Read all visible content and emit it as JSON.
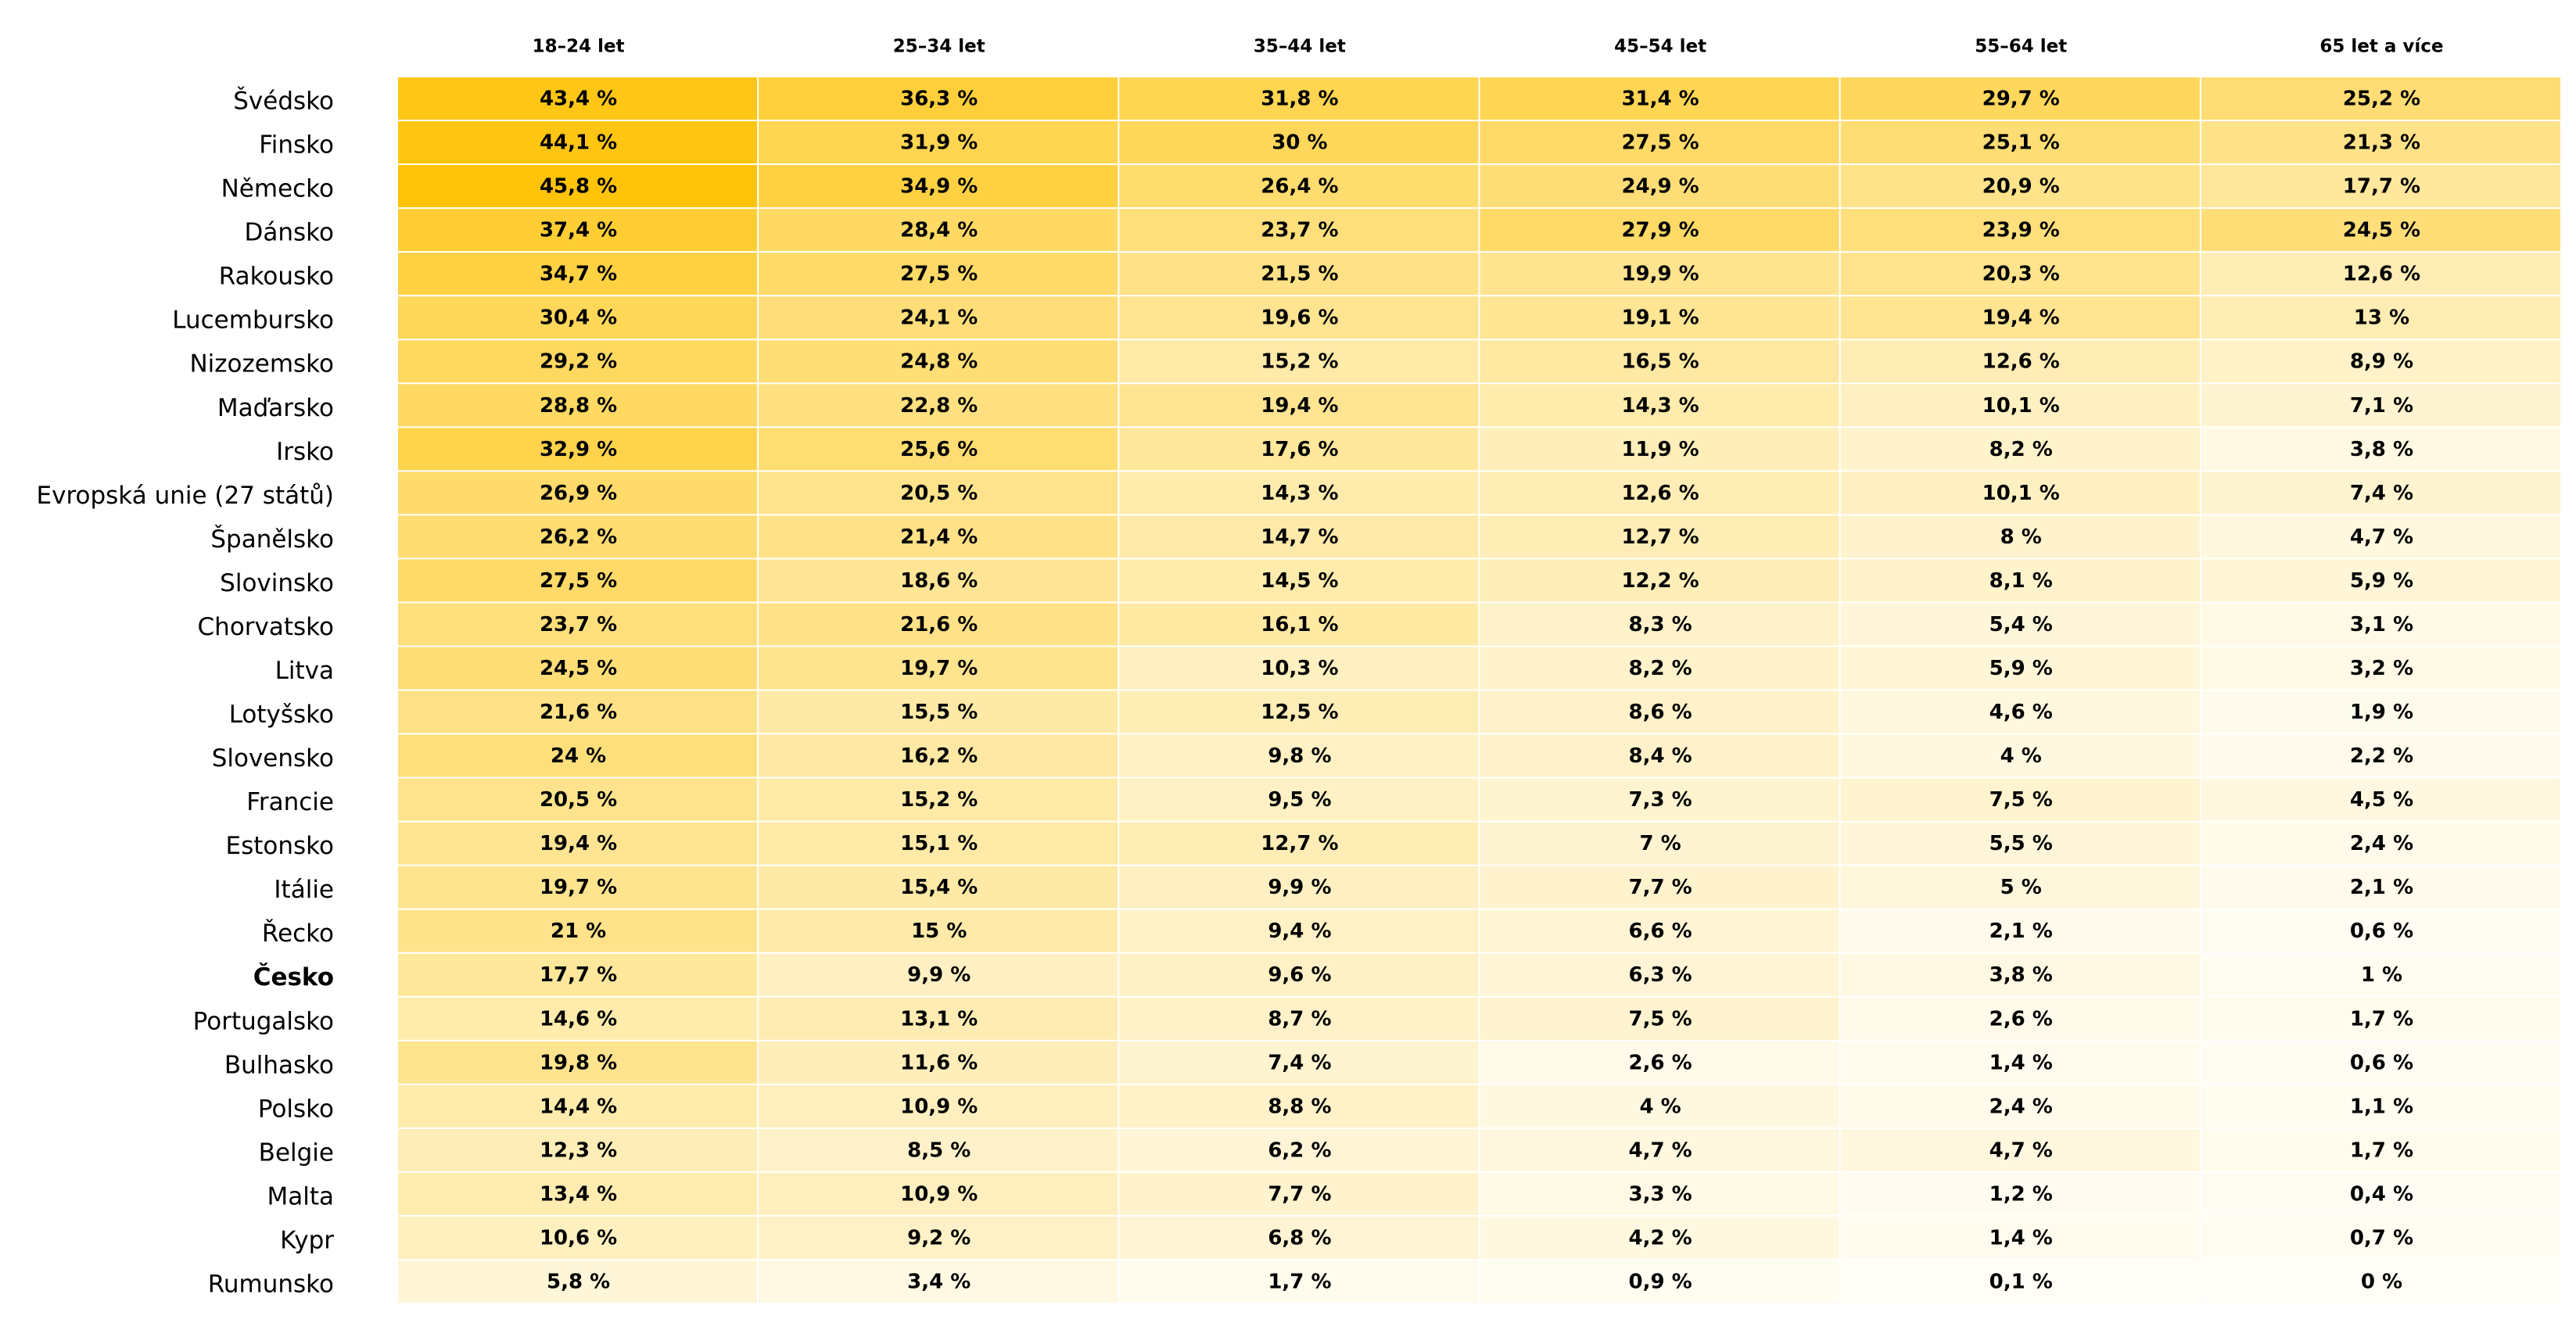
{
  "chart_data": {
    "type": "heatmap",
    "unit_suffix": " %",
    "color_scale": {
      "low": "#fffdf6",
      "high": "#ffc30a",
      "min": 0,
      "max": 45.8
    },
    "columns": [
      "18–24 let",
      "25–34 let",
      "35–44 let",
      "45–54 let",
      "55–64 let",
      "65 let a více"
    ],
    "rows": [
      {
        "label": "Švédsko",
        "values": [
          43.4,
          36.3,
          31.8,
          31.4,
          29.7,
          25.2
        ],
        "display": [
          "43,4 %",
          "36,3 %",
          "31,8 %",
          "31,4 %",
          "29,7 %",
          "25,2 %"
        ]
      },
      {
        "label": "Finsko",
        "values": [
          44.1,
          31.9,
          30,
          27.5,
          25.1,
          21.3
        ],
        "display": [
          "44,1 %",
          "31,9 %",
          "30 %",
          "27,5 %",
          "25,1 %",
          "21,3 %"
        ]
      },
      {
        "label": "Německo",
        "values": [
          45.8,
          34.9,
          26.4,
          24.9,
          20.9,
          17.7
        ],
        "display": [
          "45,8 %",
          "34,9 %",
          "26,4 %",
          "24,9 %",
          "20,9 %",
          "17,7 %"
        ]
      },
      {
        "label": "Dánsko",
        "values": [
          37.4,
          28.4,
          23.7,
          27.9,
          23.9,
          24.5
        ],
        "display": [
          "37,4 %",
          "28,4 %",
          "23,7 %",
          "27,9 %",
          "23,9 %",
          "24,5 %"
        ]
      },
      {
        "label": "Rakousko",
        "values": [
          34.7,
          27.5,
          21.5,
          19.9,
          20.3,
          12.6
        ],
        "display": [
          "34,7 %",
          "27,5 %",
          "21,5 %",
          "19,9 %",
          "20,3 %",
          "12,6 %"
        ]
      },
      {
        "label": "Lucembursko",
        "values": [
          30.4,
          24.1,
          19.6,
          19.1,
          19.4,
          13
        ],
        "display": [
          "30,4 %",
          "24,1 %",
          "19,6 %",
          "19,1 %",
          "19,4 %",
          "13 %"
        ]
      },
      {
        "label": "Nizozemsko",
        "values": [
          29.2,
          24.8,
          15.2,
          16.5,
          12.6,
          8.9
        ],
        "display": [
          "29,2 %",
          "24,8 %",
          "15,2 %",
          "16,5 %",
          "12,6 %",
          "8,9 %"
        ]
      },
      {
        "label": "Maďarsko",
        "values": [
          28.8,
          22.8,
          19.4,
          14.3,
          10.1,
          7.1
        ],
        "display": [
          "28,8 %",
          "22,8 %",
          "19,4 %",
          "14,3 %",
          "10,1 %",
          "7,1 %"
        ]
      },
      {
        "label": "Irsko",
        "values": [
          32.9,
          25.6,
          17.6,
          11.9,
          8.2,
          3.8
        ],
        "display": [
          "32,9 %",
          "25,6 %",
          "17,6 %",
          "11,9 %",
          "8,2 %",
          "3,8 %"
        ]
      },
      {
        "label": "Evropská unie (27 států)",
        "values": [
          26.9,
          20.5,
          14.3,
          12.6,
          10.1,
          7.4
        ],
        "display": [
          "26,9 %",
          "20,5 %",
          "14,3 %",
          "12,6 %",
          "10,1 %",
          "7,4 %"
        ]
      },
      {
        "label": "Španělsko",
        "values": [
          26.2,
          21.4,
          14.7,
          12.7,
          8,
          4.7
        ],
        "display": [
          "26,2 %",
          "21,4 %",
          "14,7 %",
          "12,7 %",
          "8 %",
          "4,7 %"
        ]
      },
      {
        "label": "Slovinsko",
        "values": [
          27.5,
          18.6,
          14.5,
          12.2,
          8.1,
          5.9
        ],
        "display": [
          "27,5 %",
          "18,6 %",
          "14,5 %",
          "12,2 %",
          "8,1 %",
          "5,9 %"
        ]
      },
      {
        "label": "Chorvatsko",
        "values": [
          23.7,
          21.6,
          16.1,
          8.3,
          5.4,
          3.1
        ],
        "display": [
          "23,7 %",
          "21,6 %",
          "16,1 %",
          "8,3 %",
          "5,4 %",
          "3,1 %"
        ]
      },
      {
        "label": "Litva",
        "values": [
          24.5,
          19.7,
          10.3,
          8.2,
          5.9,
          3.2
        ],
        "display": [
          "24,5 %",
          "19,7 %",
          "10,3 %",
          "8,2 %",
          "5,9 %",
          "3,2 %"
        ]
      },
      {
        "label": "Lotyšsko",
        "values": [
          21.6,
          15.5,
          12.5,
          8.6,
          4.6,
          1.9
        ],
        "display": [
          "21,6 %",
          "15,5 %",
          "12,5 %",
          "8,6 %",
          "4,6 %",
          "1,9 %"
        ]
      },
      {
        "label": "Slovensko",
        "values": [
          24,
          16.2,
          9.8,
          8.4,
          4,
          2.2
        ],
        "display": [
          "24 %",
          "16,2 %",
          "9,8 %",
          "8,4 %",
          "4 %",
          "2,2 %"
        ]
      },
      {
        "label": "Francie",
        "values": [
          20.5,
          15.2,
          9.5,
          7.3,
          7.5,
          4.5
        ],
        "display": [
          "20,5 %",
          "15,2 %",
          "9,5 %",
          "7,3 %",
          "7,5 %",
          "4,5 %"
        ]
      },
      {
        "label": "Estonsko",
        "values": [
          19.4,
          15.1,
          12.7,
          7,
          5.5,
          2.4
        ],
        "display": [
          "19,4 %",
          "15,1 %",
          "12,7 %",
          "7 %",
          "5,5 %",
          "2,4 %"
        ]
      },
      {
        "label": "Itálie",
        "values": [
          19.7,
          15.4,
          9.9,
          7.7,
          5,
          2.1
        ],
        "display": [
          "19,7 %",
          "15,4 %",
          "9,9 %",
          "7,7 %",
          "5 %",
          "2,1 %"
        ]
      },
      {
        "label": "Řecko",
        "values": [
          21,
          15,
          9.4,
          6.6,
          2.1,
          0.6
        ],
        "display": [
          "21 %",
          "15 %",
          "9,4 %",
          "6,6 %",
          "2,1 %",
          "0,6 %"
        ]
      },
      {
        "label": "Česko",
        "bold": true,
        "values": [
          17.7,
          9.9,
          9.6,
          6.3,
          3.8,
          1
        ],
        "display": [
          "17,7 %",
          "9,9 %",
          "9,6 %",
          "6,3 %",
          "3,8 %",
          "1 %"
        ]
      },
      {
        "label": "Portugalsko",
        "values": [
          14.6,
          13.1,
          8.7,
          7.5,
          2.6,
          1.7
        ],
        "display": [
          "14,6 %",
          "13,1 %",
          "8,7 %",
          "7,5 %",
          "2,6 %",
          "1,7 %"
        ]
      },
      {
        "label": "Bulhasko",
        "values": [
          19.8,
          11.6,
          7.4,
          2.6,
          1.4,
          0.6
        ],
        "display": [
          "19,8 %",
          "11,6 %",
          "7,4 %",
          "2,6 %",
          "1,4 %",
          "0,6 %"
        ]
      },
      {
        "label": "Polsko",
        "values": [
          14.4,
          10.9,
          8.8,
          4,
          2.4,
          1.1
        ],
        "display": [
          "14,4 %",
          "10,9 %",
          "8,8 %",
          "4 %",
          "2,4 %",
          "1,1 %"
        ]
      },
      {
        "label": "Belgie",
        "values": [
          12.3,
          8.5,
          6.2,
          4.7,
          4.7,
          1.7
        ],
        "display": [
          "12,3 %",
          "8,5 %",
          "6,2 %",
          "4,7 %",
          "4,7 %",
          "1,7 %"
        ]
      },
      {
        "label": "Malta",
        "values": [
          13.4,
          10.9,
          7.7,
          3.3,
          1.2,
          0.4
        ],
        "display": [
          "13,4 %",
          "10,9 %",
          "7,7 %",
          "3,3 %",
          "1,2 %",
          "0,4 %"
        ]
      },
      {
        "label": "Kypr",
        "values": [
          10.6,
          9.2,
          6.8,
          4.2,
          1.4,
          0.7
        ],
        "display": [
          "10,6 %",
          "9,2 %",
          "6,8 %",
          "4,2 %",
          "1,4 %",
          "0,7 %"
        ]
      },
      {
        "label": "Rumunsko",
        "values": [
          5.8,
          3.4,
          1.7,
          0.9,
          0.1,
          0
        ],
        "display": [
          "5,8 %",
          "3,4 %",
          "1,7 %",
          "0,9 %",
          "0,1 %",
          "0 %"
        ]
      }
    ]
  }
}
